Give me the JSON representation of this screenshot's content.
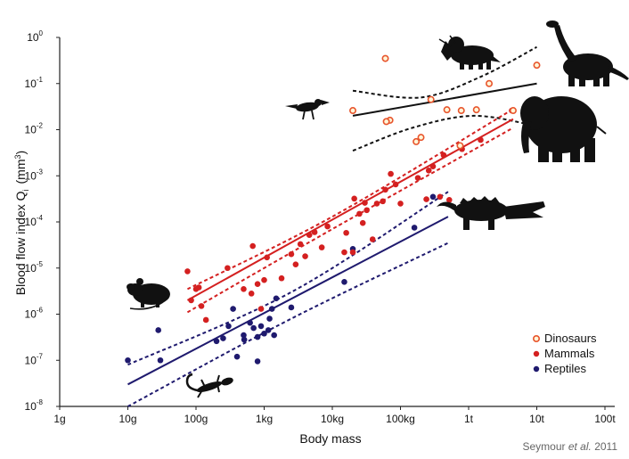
{
  "chart_data": {
    "type": "scatter",
    "title": "",
    "xlabel": "Body mass",
    "ylabel": "Blood flow index  Q",
    "ylabel_sub": "i",
    "ylabel_unit": "(mm",
    "ylabel_unit_sup": "3",
    "ylabel_unit_close": ")",
    "x_scale": "log",
    "y_scale": "log",
    "xlim_grams": [
      1,
      100000000000000.0
    ],
    "ylim_mm3": [
      1e-08,
      1
    ],
    "x_ticks": [
      {
        "value": 1,
        "label": "1g"
      },
      {
        "value": 10,
        "label": "10g"
      },
      {
        "value": 100,
        "label": "100g"
      },
      {
        "value": 1000,
        "label": "1kg"
      },
      {
        "value": 10000,
        "label": "10kg"
      },
      {
        "value": 100000,
        "label": "100kg"
      },
      {
        "value": 1000000,
        "label": "1t"
      },
      {
        "value": 10000000,
        "label": "10t"
      },
      {
        "value": 100000000,
        "label": "100t"
      }
    ],
    "y_ticks": [
      {
        "value": 1e-08,
        "base": "10",
        "exp": "-8"
      },
      {
        "value": 1e-07,
        "base": "10",
        "exp": "-7"
      },
      {
        "value": 1e-06,
        "base": "10",
        "exp": "-6"
      },
      {
        "value": 1e-05,
        "base": "10",
        "exp": "-5"
      },
      {
        "value": 0.0001,
        "base": "10",
        "exp": "-4"
      },
      {
        "value": 0.001,
        "base": "10",
        "exp": "-3"
      },
      {
        "value": 0.01,
        "base": "10",
        "exp": "-2"
      },
      {
        "value": 0.1,
        "base": "10",
        "exp": "-1"
      },
      {
        "value": 1,
        "base": "10",
        "exp": "0"
      }
    ],
    "grid": false,
    "legend_position": "bottom-right",
    "source": {
      "prefix": "Seymour ",
      "italic": "et  al.",
      "suffix": " 2011"
    },
    "series": [
      {
        "name": "Dinosaurs",
        "color": "#e8542c",
        "marker": "ring",
        "points": [
          [
            20000,
            0.026
          ],
          [
            60000,
            0.35
          ],
          [
            70000,
            0.016
          ],
          [
            62000,
            0.015
          ],
          [
            280000,
            0.045
          ],
          [
            480000,
            0.027
          ],
          [
            780000,
            0.026
          ],
          [
            1300000,
            0.027
          ],
          [
            2000000,
            0.1
          ],
          [
            4500000,
            0.026
          ],
          [
            10000000,
            0.25
          ],
          [
            170000,
            0.0055
          ],
          [
            200000,
            0.0068
          ],
          [
            750000,
            0.0045
          ]
        ],
        "fit": {
          "from": 20000,
          "to": 10000000,
          "y_from": 0.02,
          "y_to": 0.1
        },
        "ci_upper": [
          [
            20000,
            0.07
          ],
          [
            200000,
            0.05
          ],
          [
            1500000,
            0.14
          ],
          [
            10000000,
            0.62
          ]
        ],
        "ci_lower": [
          [
            20000,
            0.0035
          ],
          [
            150000,
            0.011
          ],
          [
            1200000,
            0.02
          ],
          [
            10000000,
            0.012
          ]
        ]
      },
      {
        "name": "Mammals",
        "color": "#d42020",
        "marker": "dot",
        "points": [
          [
            75,
            8.5e-06
          ],
          [
            85,
            2e-06
          ],
          [
            100,
            3.5e-06
          ],
          [
            110,
            3.8e-06
          ],
          [
            120,
            1.5e-06
          ],
          [
            140,
            7.5e-07
          ],
          [
            290,
            1e-05
          ],
          [
            500,
            3.5e-06
          ],
          [
            650,
            2.8e-06
          ],
          [
            680,
            3e-05
          ],
          [
            800,
            4.5e-06
          ],
          [
            900,
            1.3e-06
          ],
          [
            1000,
            5.5e-06
          ],
          [
            1100,
            1.7e-05
          ],
          [
            1800,
            6e-06
          ],
          [
            2500,
            2e-05
          ],
          [
            2900,
            1.2e-05
          ],
          [
            3400,
            3.3e-05
          ],
          [
            4000,
            1.8e-05
          ],
          [
            5500,
            6e-05
          ],
          [
            4600,
            5.2e-05
          ],
          [
            7000,
            2.8e-05
          ],
          [
            8500,
            8e-05
          ],
          [
            15000,
            2.2e-05
          ],
          [
            16000,
            5.8e-05
          ],
          [
            20000,
            2.2e-05
          ],
          [
            21000,
            0.00032
          ],
          [
            25000,
            0.00015
          ],
          [
            28000,
            9.5e-05
          ],
          [
            30000,
            0.00026
          ],
          [
            32000,
            0.00018
          ],
          [
            39000,
            4.2e-05
          ],
          [
            45000,
            0.00025
          ],
          [
            55000,
            0.00028
          ],
          [
            60000,
            0.0005
          ],
          [
            72000,
            0.0011
          ],
          [
            85000,
            0.00065
          ],
          [
            100000,
            0.00025
          ],
          [
            180000,
            0.0009
          ],
          [
            240000,
            0.00031
          ],
          [
            260000,
            0.0013
          ],
          [
            300000,
            0.0016
          ],
          [
            380000,
            0.00035
          ],
          [
            430000,
            0.0028
          ],
          [
            520000,
            0.0003
          ],
          [
            800000,
            0.0038
          ],
          [
            1500000,
            0.006
          ],
          [
            4300000,
            0.026
          ]
        ],
        "fit": {
          "from": 75,
          "to": 4500000,
          "y_from": 2e-06,
          "y_to": 0.017
        },
        "ci_upper": [
          [
            75,
            3.5e-06
          ],
          [
            10000,
            0.00013
          ],
          [
            4500000,
            0.028
          ]
        ],
        "ci_lower": [
          [
            75,
            1.1e-06
          ],
          [
            10000,
            7e-05
          ],
          [
            4500000,
            0.011
          ]
        ]
      },
      {
        "name": "Reptiles",
        "color": "#1f1a6e",
        "marker": "dot",
        "points": [
          [
            10,
            1e-07
          ],
          [
            28,
            4.5e-07
          ],
          [
            30,
            1e-07
          ],
          [
            200,
            2.6e-07
          ],
          [
            250,
            3e-07
          ],
          [
            300,
            5.5e-07
          ],
          [
            350,
            1.3e-06
          ],
          [
            400,
            1.2e-07
          ],
          [
            500,
            3.5e-07
          ],
          [
            510,
            2.8e-07
          ],
          [
            620,
            6.5e-07
          ],
          [
            700,
            5e-07
          ],
          [
            800,
            3.2e-07
          ],
          [
            800,
            9.5e-08
          ],
          [
            900,
            5.5e-07
          ],
          [
            1000,
            3.8e-07
          ],
          [
            1150,
            4.5e-07
          ],
          [
            1200,
            8e-07
          ],
          [
            1300,
            1.3e-06
          ],
          [
            1400,
            3.5e-07
          ],
          [
            1500,
            2.2e-06
          ],
          [
            2500,
            1.4e-06
          ],
          [
            15000,
            5e-06
          ],
          [
            20000,
            2.6e-05
          ],
          [
            160000,
            7.5e-05
          ],
          [
            300000,
            0.00035
          ]
        ],
        "fit": {
          "from": 10,
          "to": 500000,
          "y_from": 3e-08,
          "y_to": 0.00013
        },
        "ci_upper": [
          [
            10,
            8e-08
          ],
          [
            2500,
            3e-06
          ],
          [
            500000,
            0.00045
          ]
        ],
        "ci_lower": [
          [
            10,
            1e-08
          ],
          [
            2500,
            8e-07
          ],
          [
            500000,
            3.5e-05
          ]
        ]
      }
    ]
  },
  "silhouettes": {
    "mouse": "mouse-icon",
    "lizard": "lizard-icon",
    "crocodile": "crocodile-icon",
    "elephant": "elephant-icon",
    "sauropod": "sauropod-icon",
    "triceratops": "triceratops-icon",
    "theropod": "theropod-icon"
  }
}
